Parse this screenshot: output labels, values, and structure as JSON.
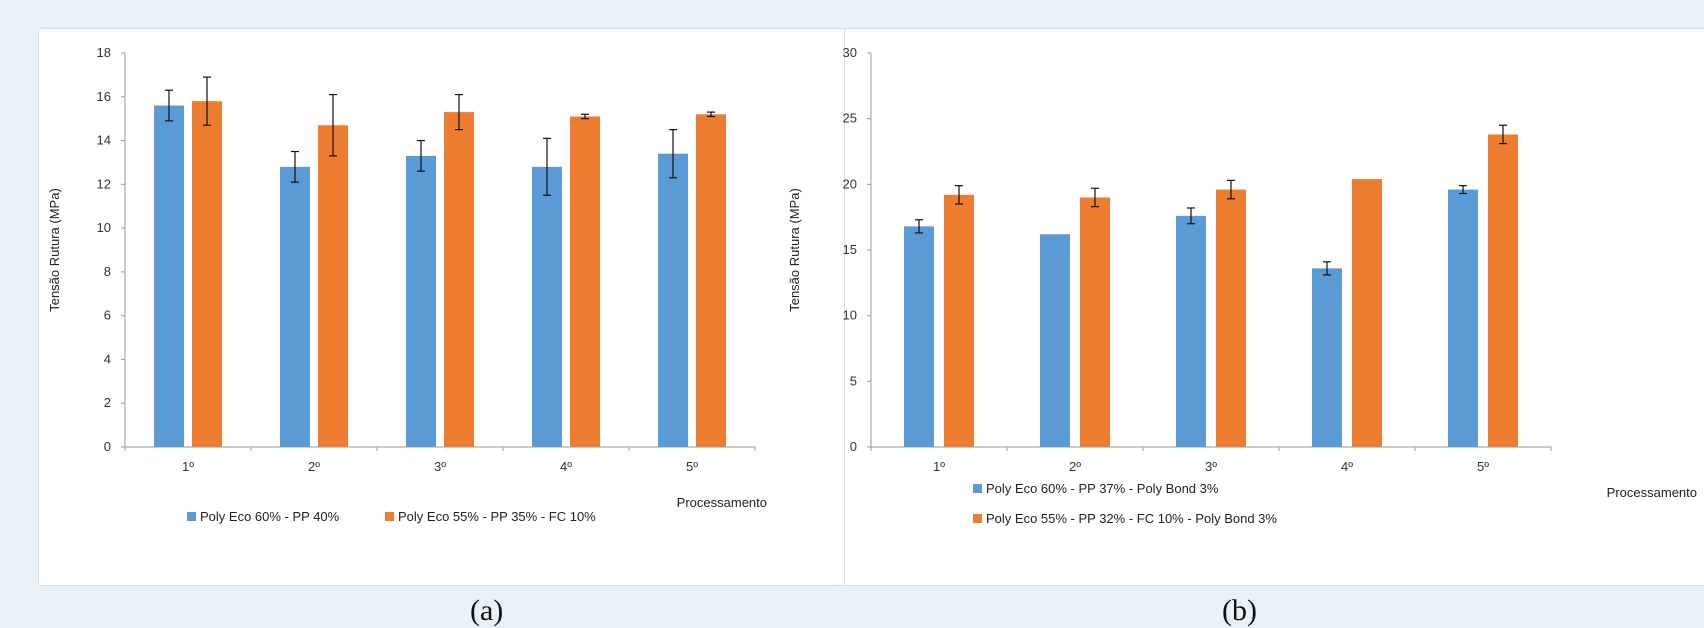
{
  "captions": [
    "(a)",
    "(b)"
  ],
  "chart_data": [
    {
      "type": "bar",
      "categories": [
        "1º",
        "2º",
        "3º",
        "4º",
        "5º"
      ],
      "ylabel": "Tensão Rutura (MPa)",
      "xlabel": "Processamento",
      "ylim": [
        0,
        18
      ],
      "yticks": [
        0,
        2,
        4,
        6,
        8,
        10,
        12,
        14,
        16,
        18
      ],
      "grid": false,
      "legend_position": "bottom",
      "series": [
        {
          "name": "Poly Eco 60% - PP 40%",
          "color": "#5b9bd5",
          "values": [
            15.6,
            12.8,
            13.3,
            12.8,
            13.4
          ],
          "errors": [
            0.7,
            0.7,
            0.7,
            1.3,
            1.1
          ]
        },
        {
          "name": "Poly Eco 55% - PP 35% - FC 10%",
          "color": "#ed7d31",
          "values": [
            15.8,
            14.7,
            15.3,
            15.1,
            15.2
          ],
          "errors": [
            1.1,
            1.4,
            0.8,
            0.1,
            0.1
          ]
        }
      ]
    },
    {
      "type": "bar",
      "categories": [
        "1º",
        "2º",
        "3º",
        "4º",
        "5º"
      ],
      "ylabel": "Tensão Rutura (MPa)",
      "xlabel": "Processamento",
      "ylim": [
        0,
        30
      ],
      "yticks": [
        0,
        5,
        10,
        15,
        20,
        25,
        30
      ],
      "grid": false,
      "legend_position": "bottom",
      "series": [
        {
          "name": "Poly Eco 60% - PP 37% - Poly Bond 3%",
          "color": "#5b9bd5",
          "values": [
            16.8,
            16.2,
            17.6,
            13.6,
            19.6
          ],
          "errors": [
            0.5,
            0.0,
            0.6,
            0.5,
            0.3
          ]
        },
        {
          "name": "Poly Eco 55% - PP 32% - FC 10% - Poly Bond 3%",
          "color": "#ed7d31",
          "values": [
            19.2,
            19.0,
            19.6,
            20.4,
            23.8
          ],
          "errors": [
            0.7,
            0.7,
            0.7,
            0.0,
            0.7
          ]
        }
      ]
    }
  ]
}
